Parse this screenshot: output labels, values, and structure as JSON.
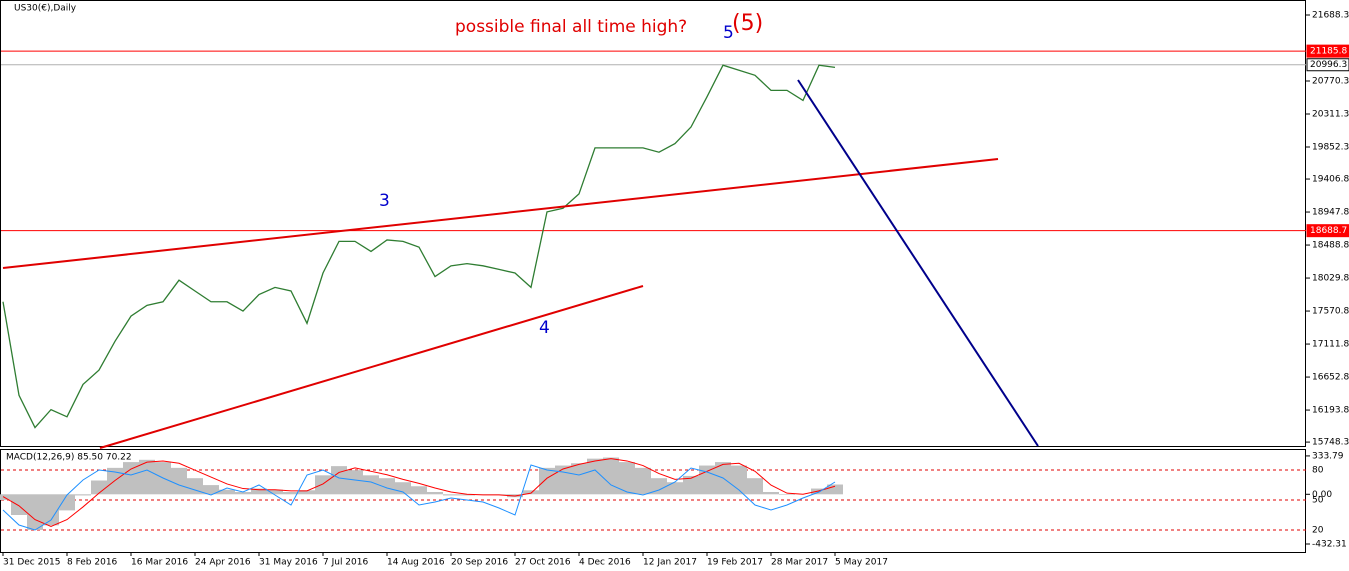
{
  "chart_data": [
    {
      "type": "line",
      "title": "US30(€),Daily",
      "color": "#2f7d32",
      "categories": [
        "31 Dec 2015",
        null,
        null,
        null,
        "8 Feb 2016",
        null,
        null,
        null,
        "16 Mar 2016",
        null,
        null,
        null,
        "24 Apr 2016",
        null,
        null,
        null,
        "31 May 2016",
        null,
        null,
        null,
        "7 Jul 2016",
        null,
        null,
        null,
        "14 Aug 2016",
        null,
        null,
        null,
        "20 Sep 2016",
        null,
        null,
        null,
        "27 Oct 2016",
        null,
        null,
        null,
        "4 Dec 2016",
        null,
        null,
        null,
        "12 Jan 2017",
        null,
        null,
        null,
        "19 Feb 2017",
        null,
        null,
        null,
        "28 Mar 2017",
        null,
        null,
        null,
        "5 May 2017"
      ],
      "values": [
        17700,
        16400,
        15950,
        16200,
        16100,
        16550,
        16750,
        17150,
        17500,
        17650,
        17700,
        18000,
        17850,
        17700,
        17700,
        17570,
        17800,
        17900,
        17850,
        17400,
        18100,
        18540,
        18540,
        18400,
        18560,
        18540,
        18460,
        18050,
        18200,
        18230,
        18200,
        18150,
        18100,
        17900,
        18950,
        19000,
        19200,
        19840,
        19840,
        19840,
        19840,
        19780,
        19900,
        20130,
        20550,
        20990,
        20920,
        20850,
        20640,
        20640,
        20500,
        20990,
        20960
      ],
      "ylim": [
        15694,
        21869
      ],
      "yticks": [
        21688.3,
        20770.3,
        20311.3,
        19852.3,
        19406.8,
        18947.8,
        18488.8,
        18029.8,
        17570.8,
        17111.8,
        16652.8,
        16193.8,
        15748.3
      ],
      "levels": [
        {
          "value": 21185.8,
          "color": "#ff0000"
        },
        {
          "value": 20996.3,
          "color": "#b0b0b0"
        },
        {
          "value": 18688.7,
          "color": "#ff0000"
        }
      ],
      "annotations": [
        "possible final all time high?",
        "(5)",
        "5",
        "3",
        "4"
      ]
    },
    {
      "type": "macd",
      "title": "MACD(12,26,9) 85.50 70.22",
      "series": [
        {
          "color": "#c0c0c0",
          "values": [
            -50,
            -180,
            -310,
            -270,
            -140,
            -10,
            120,
            230,
            280,
            300,
            280,
            230,
            140,
            80,
            40,
            20,
            50,
            40,
            20,
            35,
            165,
            245,
            210,
            165,
            140,
            105,
            70,
            20,
            -10,
            -10,
            -5,
            -5,
            -25,
            35,
            230,
            250,
            270,
            310,
            320,
            280,
            230,
            140,
            105,
            160,
            250,
            280,
            250,
            140,
            20,
            -5,
            0,
            50,
            85
          ]
        },
        {
          "color": "#ff0000",
          "values": [
            -20,
            -100,
            -220,
            -280,
            -220,
            -110,
            10,
            120,
            220,
            280,
            290,
            270,
            210,
            150,
            90,
            50,
            40,
            40,
            30,
            30,
            90,
            190,
            230,
            200,
            170,
            130,
            95,
            55,
            20,
            0,
            -5,
            -5,
            -15,
            10,
            140,
            220,
            260,
            290,
            310,
            290,
            250,
            180,
            130,
            140,
            200,
            260,
            270,
            200,
            80,
            10,
            0,
            30,
            70
          ]
        },
        {
          "color": "#1e90ff",
          "axis": "y2",
          "values": [
            40,
            25,
            20,
            30,
            55,
            70,
            80,
            78,
            75,
            80,
            72,
            65,
            60,
            55,
            62,
            58,
            65,
            55,
            45,
            75,
            80,
            72,
            70,
            68,
            62,
            58,
            45,
            48,
            52,
            50,
            48,
            42,
            35,
            85,
            80,
            78,
            75,
            80,
            65,
            58,
            55,
            60,
            68,
            82,
            78,
            72,
            60,
            45,
            40,
            45,
            52,
            58,
            68
          ]
        }
      ],
      "ylim": [
        -502,
        394
      ],
      "yticks": [
        333.79,
        {
          "value": 0,
          "label": "0.00"
        },
        -432.31
      ],
      "y2lim": [
        -2,
        101
      ],
      "y2ticks": [
        80,
        50,
        20
      ]
    }
  ]
}
